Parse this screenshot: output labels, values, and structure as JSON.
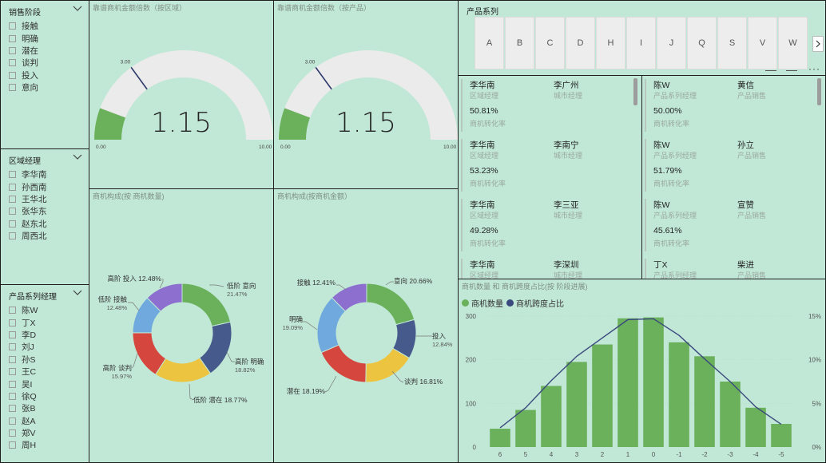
{
  "colors": {
    "bg": "#c1e8d6",
    "green": "#6bb15c",
    "navy": "#3b4a7e",
    "gauge_track": "#ebebeb"
  },
  "slicer_stage": {
    "title": "销售阶段",
    "items": [
      "接触",
      "明确",
      "潜在",
      "谈判",
      "投入",
      "意向"
    ]
  },
  "slicer_region": {
    "title": "区域经理",
    "items": [
      "李华南",
      "孙西南",
      "王华北",
      "张华东",
      "赵东北",
      "周西北"
    ]
  },
  "slicer_product": {
    "title": "产品系列经理",
    "items": [
      "陈W",
      "丁X",
      "李D",
      "刘J",
      "孙S",
      "王C",
      "吴I",
      "徐Q",
      "张B",
      "赵A",
      "郑V",
      "周H"
    ]
  },
  "gauge_region": {
    "title": "靠谱商机金额倍数（按区域）",
    "value": "1.15",
    "min": "0.00",
    "max": "10.00",
    "target": "3.00",
    "fill_value": 1.15,
    "target_value": 3.0,
    "max_value": 10
  },
  "gauge_product": {
    "title": "靠谱商机金额倍数（按产品）",
    "value": "1.15",
    "min": "0.00",
    "max": "10.00",
    "target": "3.00",
    "fill_value": 1.15,
    "target_value": 3.0,
    "max_value": 10
  },
  "product_tabs": {
    "title": "产品系列",
    "tabs": [
      "A",
      "B",
      "C",
      "D",
      "H",
      "I",
      "J",
      "Q",
      "S",
      "V",
      "W"
    ],
    "next_icon": "chevron-right-icon",
    "more_icon": "more-options-icon"
  },
  "cards_left": [
    {
      "name1": "李华南",
      "role1": "区域经理",
      "name2": "李广州",
      "role2": "城市经理",
      "pct": "50.81%",
      "label": "商机转化率"
    },
    {
      "name1": "李华南",
      "role1": "区域经理",
      "name2": "李南宁",
      "role2": "城市经理",
      "pct": "53.23%",
      "label": "商机转化率"
    },
    {
      "name1": "李华南",
      "role1": "区域经理",
      "name2": "李三亚",
      "role2": "城市经理",
      "pct": "49.28%",
      "label": "商机转化率"
    },
    {
      "name1": "李华南",
      "role1": "区域经理",
      "name2": "李深圳",
      "role2": "城市经理",
      "pct": "",
      "label": ""
    }
  ],
  "cards_right": [
    {
      "name1": "陈W",
      "role1": "产品系列经理",
      "name2": "黄信",
      "role2": "产品销售",
      "pct": "50.00%",
      "label": "商机转化率"
    },
    {
      "name1": "陈W",
      "role1": "产品系列经理",
      "name2": "孙立",
      "role2": "产品销售",
      "pct": "51.79%",
      "label": "商机转化率"
    },
    {
      "name1": "陈W",
      "role1": "产品系列经理",
      "name2": "宣赞",
      "role2": "产品销售",
      "pct": "45.61%",
      "label": "商机转化率"
    },
    {
      "name1": "丁X",
      "role1": "产品系列经理",
      "name2": "柴进",
      "role2": "产品销售",
      "pct": "",
      "label": ""
    }
  ],
  "donut_count": {
    "title": "商机构成(按 商机数量)",
    "labels": [
      {
        "text": "低阶 意向",
        "pct": "21.47%"
      },
      {
        "text": "高阶 明确",
        "pct": "18.82%"
      },
      {
        "text": "低阶 潜在 18.77%",
        "pct": ""
      },
      {
        "text": "高阶 谈判",
        "pct": "15.97%"
      },
      {
        "text": "低阶 接触",
        "pct": "12.48%"
      },
      {
        "text": "高阶 投入 12.48%",
        "pct": ""
      }
    ]
  },
  "donut_amount": {
    "title": "商机构成(按商机金额）",
    "labels": [
      {
        "text": "意向 20.66%",
        "pct": ""
      },
      {
        "text": "投入",
        "pct": "12.84%"
      },
      {
        "text": "谈判 16.81%",
        "pct": ""
      },
      {
        "text": "潜在 18.19%",
        "pct": ""
      },
      {
        "text": "明确",
        "pct": "19.09%"
      },
      {
        "text": "接触 12.41%",
        "pct": ""
      }
    ]
  },
  "chart_data": [
    {
      "type": "pie",
      "title": "商机构成(按 商机数量)",
      "categories": [
        "低阶 意向",
        "高阶 明确",
        "低阶 潜在",
        "高阶 谈判",
        "低阶 接触",
        "高阶 投入"
      ],
      "values": [
        21.47,
        18.82,
        18.77,
        15.97,
        12.48,
        12.48
      ],
      "colors": [
        "#6bb15c",
        "#465a8c",
        "#ecc440",
        "#d5463f",
        "#6fa9de",
        "#8c6fcf"
      ]
    },
    {
      "type": "pie",
      "title": "商机构成(按商机金额）",
      "categories": [
        "意向",
        "投入",
        "谈判",
        "潜在",
        "明确",
        "接触"
      ],
      "values": [
        20.66,
        12.84,
        16.81,
        18.19,
        19.09,
        12.41
      ],
      "colors": [
        "#6bb15c",
        "#465a8c",
        "#ecc440",
        "#d5463f",
        "#6fa9de",
        "#8c6fcf"
      ]
    },
    {
      "type": "bar",
      "title": "商机数量 和 商机跨度占比(按 阶段进展)",
      "categories": [
        "6",
        "5",
        "4",
        "3",
        "2",
        "1",
        "0",
        "-1",
        "-2",
        "-3",
        "-4",
        "-5"
      ],
      "series": [
        {
          "name": "商机数量",
          "type": "bar",
          "values": [
            42,
            85,
            140,
            195,
            235,
            295,
            297,
            240,
            208,
            150,
            90,
            53
          ],
          "color": "#6bb15c"
        },
        {
          "name": "商机跨度占比",
          "type": "line",
          "values": [
            2.2,
            4.5,
            7.6,
            10.4,
            12.5,
            14.6,
            14.7,
            12.8,
            10.1,
            7.5,
            4.6,
            2.6
          ],
          "color": "#3b4a7e"
        }
      ],
      "y_left": {
        "ticks": [
          "0",
          "100",
          "200",
          "300"
        ],
        "ylim": [
          0,
          300
        ]
      },
      "y_right": {
        "ticks": [
          "0%",
          "5%",
          "10%",
          "15%"
        ],
        "ylim": [
          0,
          15
        ]
      }
    }
  ]
}
